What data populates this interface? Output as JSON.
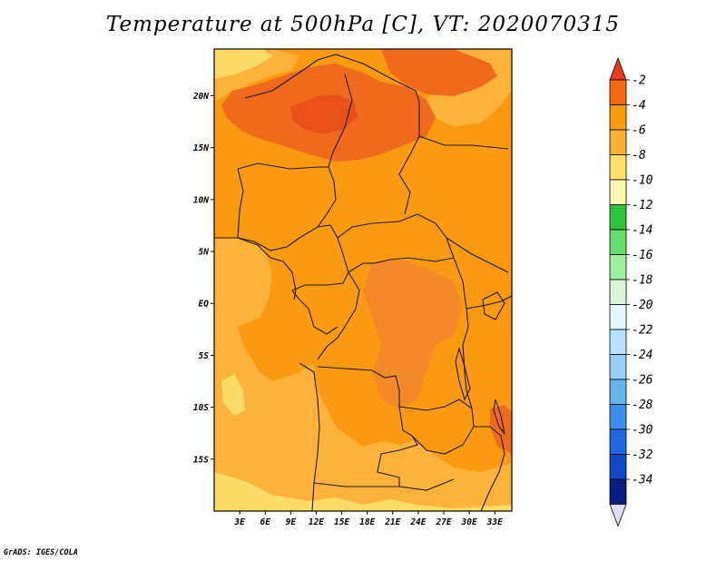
{
  "title": "Temperature at 500hPa [C], VT: 2020070315",
  "credit": "GrADS: IGES/COLA",
  "map": {
    "lon_range": [
      0,
      35
    ],
    "lat_range": [
      -20,
      24.5
    ],
    "lon_tick_labels": [
      "3E",
      "6E",
      "9E",
      "12E",
      "15E",
      "18E",
      "21E",
      "24E",
      "27E",
      "30E",
      "33E"
    ],
    "lat_tick_labels": [
      "20N",
      "15N",
      "10N",
      "5N",
      "EQ",
      "5S",
      "10S",
      "15S"
    ],
    "field_colors": {
      "-2": "#f06a1e",
      "-4": "#fa9a10",
      "-6": "#fdb23b",
      "-8": "#fedc68"
    }
  },
  "colorbar": {
    "levels": [
      "-2",
      "-4",
      "-6",
      "-8",
      "-10",
      "-12",
      "-14",
      "-16",
      "-18",
      "-20",
      "-22",
      "-24",
      "-26",
      "-28",
      "-30",
      "-32",
      "-34"
    ],
    "colors": [
      "#e83b1e",
      "#f26a14",
      "#fb9b0e",
      "#fdb332",
      "#fedf6a",
      "#fff6b0",
      "#31c43a",
      "#61e06a",
      "#9ef09e",
      "#d6f8d6",
      "#e2f7ff",
      "#b6e3ff",
      "#96d0f6",
      "#66b4ee",
      "#3a8ee8",
      "#1f6ae0",
      "#0c48c8",
      "#0a1e82",
      "#e0dcf4"
    ]
  }
}
